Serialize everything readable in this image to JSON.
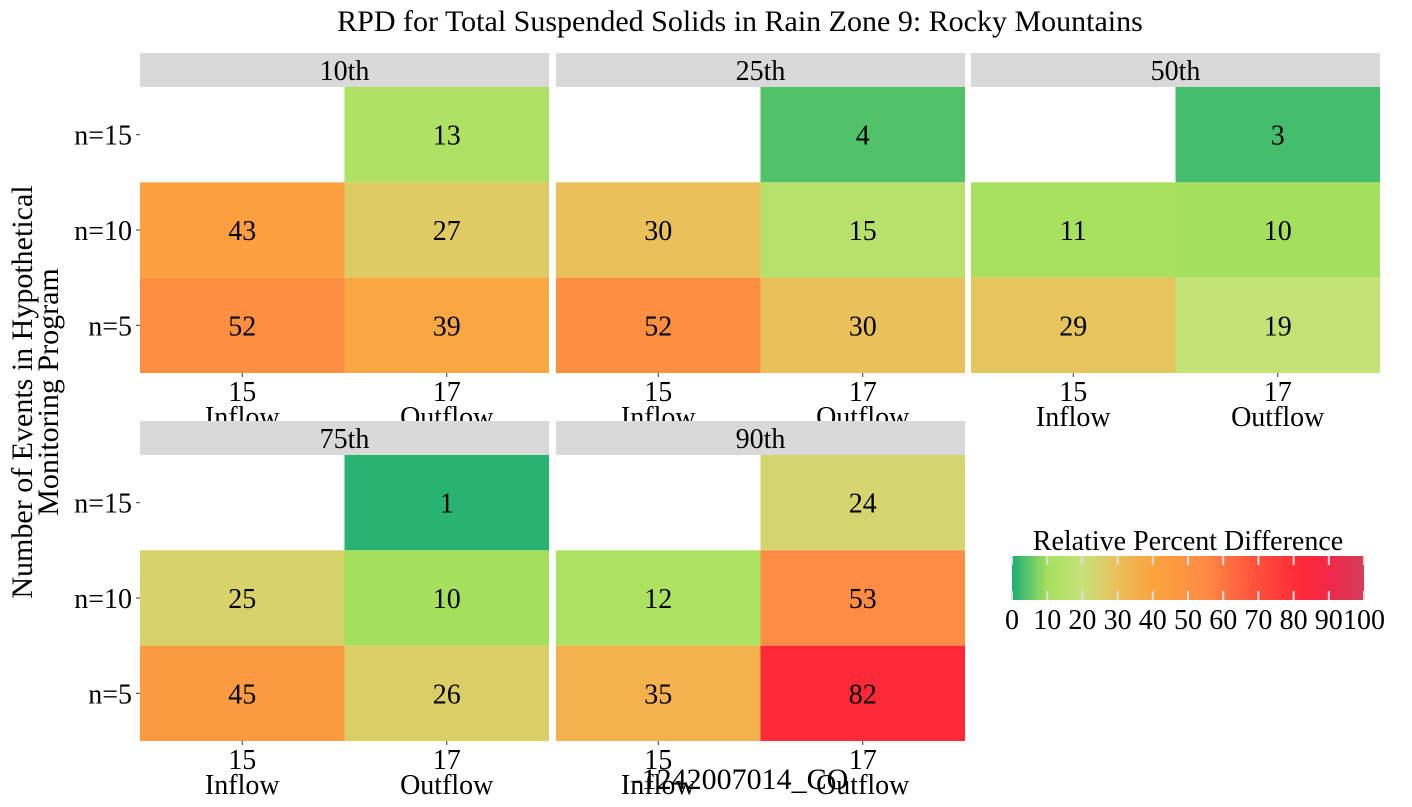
{
  "chart_data": {
    "type": "heatmap",
    "title": "RPD for Total Suspended Solids in Rain Zone 9: Rocky Mountains",
    "xlabel": "-1242007014_CO",
    "ylabel_lines": [
      "Number of Events in Hypothetical",
      "Monitoring Program"
    ],
    "x_categories": [
      {
        "tick": "15",
        "name": "Inflow"
      },
      {
        "tick": "17",
        "name": "Outflow"
      }
    ],
    "y_categories": [
      "n=15",
      "n=10",
      "n=5"
    ],
    "panels": [
      {
        "label": "10th",
        "cells": [
          {
            "x": "Outflow",
            "y": "n=15",
            "value": 13
          },
          {
            "x": "Inflow",
            "y": "n=10",
            "value": 43
          },
          {
            "x": "Outflow",
            "y": "n=10",
            "value": 27
          },
          {
            "x": "Inflow",
            "y": "n=5",
            "value": 52
          },
          {
            "x": "Outflow",
            "y": "n=5",
            "value": 39
          }
        ]
      },
      {
        "label": "25th",
        "cells": [
          {
            "x": "Outflow",
            "y": "n=15",
            "value": 4
          },
          {
            "x": "Inflow",
            "y": "n=10",
            "value": 30
          },
          {
            "x": "Outflow",
            "y": "n=10",
            "value": 15
          },
          {
            "x": "Inflow",
            "y": "n=5",
            "value": 52
          },
          {
            "x": "Outflow",
            "y": "n=5",
            "value": 30
          }
        ]
      },
      {
        "label": "50th",
        "cells": [
          {
            "x": "Outflow",
            "y": "n=15",
            "value": 3
          },
          {
            "x": "Inflow",
            "y": "n=10",
            "value": 11
          },
          {
            "x": "Outflow",
            "y": "n=10",
            "value": 10
          },
          {
            "x": "Inflow",
            "y": "n=5",
            "value": 29
          },
          {
            "x": "Outflow",
            "y": "n=5",
            "value": 19
          }
        ]
      },
      {
        "label": "75th",
        "cells": [
          {
            "x": "Outflow",
            "y": "n=15",
            "value": 1
          },
          {
            "x": "Inflow",
            "y": "n=10",
            "value": 25
          },
          {
            "x": "Outflow",
            "y": "n=10",
            "value": 10
          },
          {
            "x": "Inflow",
            "y": "n=5",
            "value": 45
          },
          {
            "x": "Outflow",
            "y": "n=5",
            "value": 26
          }
        ]
      },
      {
        "label": "90th",
        "cells": [
          {
            "x": "Outflow",
            "y": "n=15",
            "value": 24
          },
          {
            "x": "Inflow",
            "y": "n=10",
            "value": 12
          },
          {
            "x": "Outflow",
            "y": "n=10",
            "value": 53
          },
          {
            "x": "Inflow",
            "y": "n=5",
            "value": 35
          },
          {
            "x": "Outflow",
            "y": "n=5",
            "value": 82
          }
        ]
      }
    ],
    "legend": {
      "title": "Relative Percent Difference",
      "ticks": [
        0,
        10,
        20,
        30,
        40,
        50,
        60,
        70,
        80,
        90,
        100
      ],
      "range": [
        0,
        100
      ],
      "colors": [
        {
          "value": 0,
          "color": "#1aae74"
        },
        {
          "value": 10,
          "color": "#a5e05c"
        },
        {
          "value": 20,
          "color": "#c6e37a"
        },
        {
          "value": 30,
          "color": "#eac05b"
        },
        {
          "value": 40,
          "color": "#fba43e"
        },
        {
          "value": 55,
          "color": "#fe8a44"
        },
        {
          "value": 70,
          "color": "#ff4e3b"
        },
        {
          "value": 82,
          "color": "#fe2a37"
        },
        {
          "value": 90,
          "color": "#f1284a"
        },
        {
          "value": 100,
          "color": "#d43d5a"
        }
      ]
    },
    "strip_color": "#d9d9d9"
  }
}
